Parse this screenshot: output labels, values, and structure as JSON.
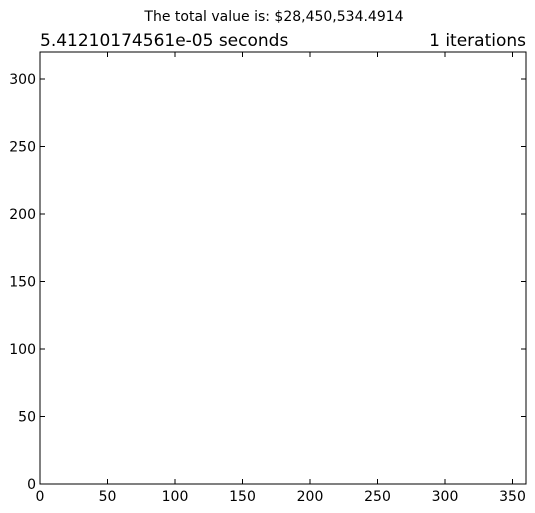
{
  "chart_data": {
    "type": "scatter",
    "suptitle": "The total value is: $28,450,534.4914",
    "title_left": "5.41210174561e-05 seconds",
    "title_right": "1 iterations",
    "xlabel": "",
    "ylabel": "",
    "xlim": [
      0,
      360
    ],
    "ylim": [
      0,
      320
    ],
    "xticks": [
      "0",
      "50",
      "100",
      "150",
      "200",
      "250",
      "300",
      "350"
    ],
    "yticks": [
      "0",
      "50",
      "100",
      "150",
      "200",
      "250",
      "300"
    ],
    "grid": false,
    "series": []
  },
  "colors": {
    "background": "#ffffff",
    "axes": "#000000",
    "text": "#000000"
  }
}
